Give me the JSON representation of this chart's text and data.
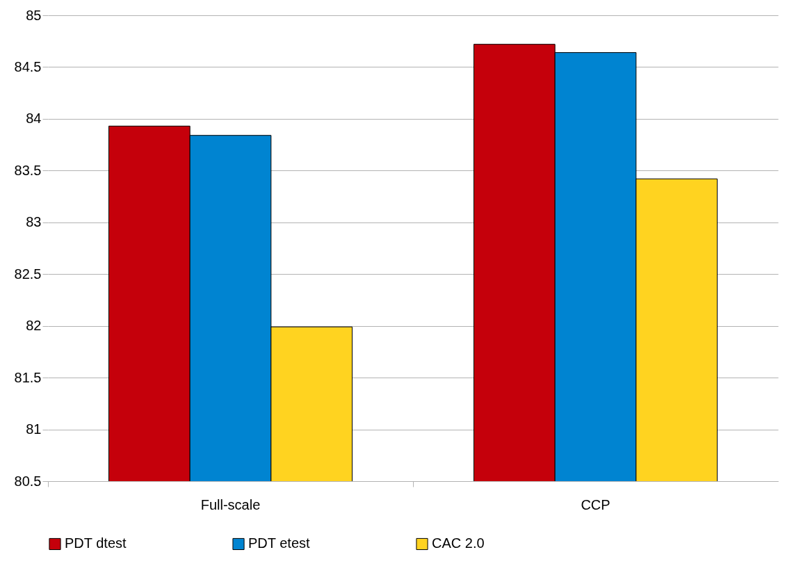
{
  "chart_data": {
    "type": "bar",
    "categories": [
      "Full-scale",
      "CCP"
    ],
    "series": [
      {
        "name": "PDT dtest",
        "color": "#c5000b",
        "values": [
          83.93,
          84.72
        ]
      },
      {
        "name": "PDT etest",
        "color": "#0084d1",
        "values": [
          83.84,
          84.64
        ]
      },
      {
        "name": "CAC 2.0",
        "color": "#ffd320",
        "values": [
          81.99,
          83.42
        ]
      }
    ],
    "ylim": [
      80.5,
      85
    ],
    "yticks": [
      80.5,
      81,
      81.5,
      82,
      82.5,
      83,
      83.5,
      84,
      84.5,
      85
    ],
    "grid": "y",
    "legend": "bottom"
  }
}
